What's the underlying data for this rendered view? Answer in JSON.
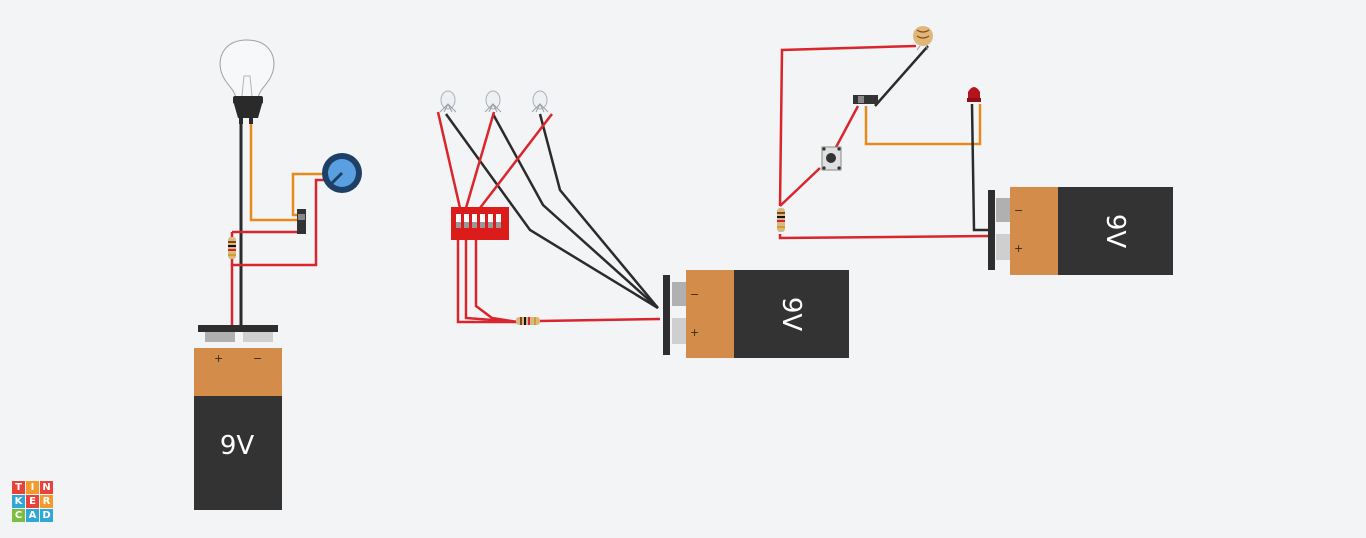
{
  "app": {
    "name": "Tinkercad"
  },
  "logo": {
    "letters": [
      {
        "ch": "T",
        "color": "#e8433a"
      },
      {
        "ch": "I",
        "color": "#f29a2e"
      },
      {
        "ch": "N",
        "color": "#e8433a"
      },
      {
        "ch": "K",
        "color": "#31a7d8"
      },
      {
        "ch": "E",
        "color": "#e8433a"
      },
      {
        "ch": "R",
        "color": "#f29a2e"
      },
      {
        "ch": "C",
        "color": "#7cbf3f"
      },
      {
        "ch": "A",
        "color": "#31a7d8"
      },
      {
        "ch": "D",
        "color": "#31a7d8"
      }
    ]
  },
  "batteries": {
    "left": {
      "label": "9V",
      "plus": "+",
      "minus": "−"
    },
    "middle": {
      "label": "9V",
      "plus": "+",
      "minus": "−"
    },
    "right": {
      "label": "9V",
      "plus": "+",
      "minus": "−"
    }
  },
  "colors": {
    "background": "#f3f4f6",
    "wire_red": "#d9262c",
    "wire_black": "#2b2b2b",
    "wire_orange": "#e8891c",
    "battery_body": "#333333",
    "battery_cap": "#d38c4a",
    "dip_switch": "#dc1b1b"
  }
}
